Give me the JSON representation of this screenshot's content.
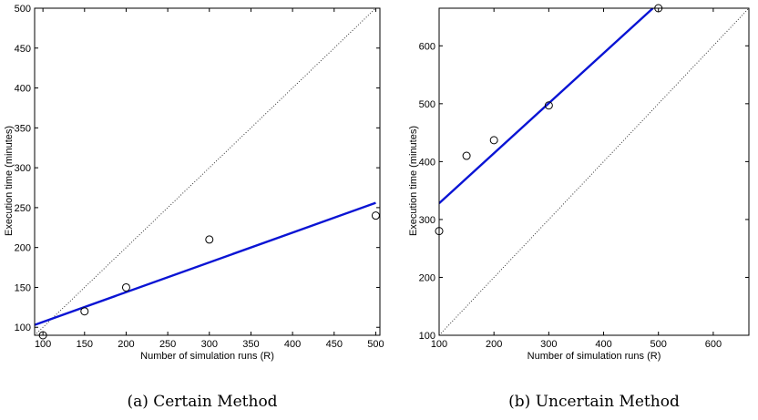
{
  "chart_data": [
    {
      "type": "scatter",
      "caption": "(a)  Certain Method",
      "xlabel": "Number of simulation runs (R)",
      "ylabel": "Execution time (minutes)",
      "xlim": [
        90,
        505
      ],
      "ylim": [
        90,
        500
      ],
      "xticks": [
        100,
        150,
        200,
        250,
        300,
        350,
        400,
        450,
        500
      ],
      "yticks": [
        100,
        150,
        200,
        250,
        300,
        350,
        400,
        450,
        500
      ],
      "points": {
        "x": [
          100,
          150,
          200,
          300,
          500
        ],
        "y": [
          90,
          120,
          150,
          210,
          240
        ]
      },
      "fit_line": {
        "x": [
          90,
          500
        ],
        "y": [
          103,
          256
        ]
      },
      "reference_line": {
        "x": [
          90,
          500
        ],
        "y": [
          90,
          500
        ]
      },
      "colors": {
        "fit": "#0a14d4",
        "points": "#000000",
        "reference": "#333333"
      }
    },
    {
      "type": "scatter",
      "caption": "(b)  Uncertain Method",
      "xlabel": "Number of simulation runs (R)",
      "ylabel": "Execution time (minutes)",
      "xlim": [
        100,
        665
      ],
      "ylim": [
        100,
        665
      ],
      "xticks": [
        100,
        200,
        300,
        400,
        500,
        600
      ],
      "yticks": [
        100,
        200,
        300,
        400,
        500,
        600
      ],
      "points": {
        "x": [
          100,
          150,
          200,
          300,
          500
        ],
        "y": [
          280,
          410,
          437,
          497,
          665
        ]
      },
      "fit_line": {
        "x": [
          100,
          490
        ],
        "y": [
          328,
          665
        ]
      },
      "reference_line": {
        "x": [
          100,
          665
        ],
        "y": [
          100,
          665
        ]
      },
      "colors": {
        "fit": "#0a14d4",
        "points": "#000000",
        "reference": "#333333"
      }
    }
  ]
}
